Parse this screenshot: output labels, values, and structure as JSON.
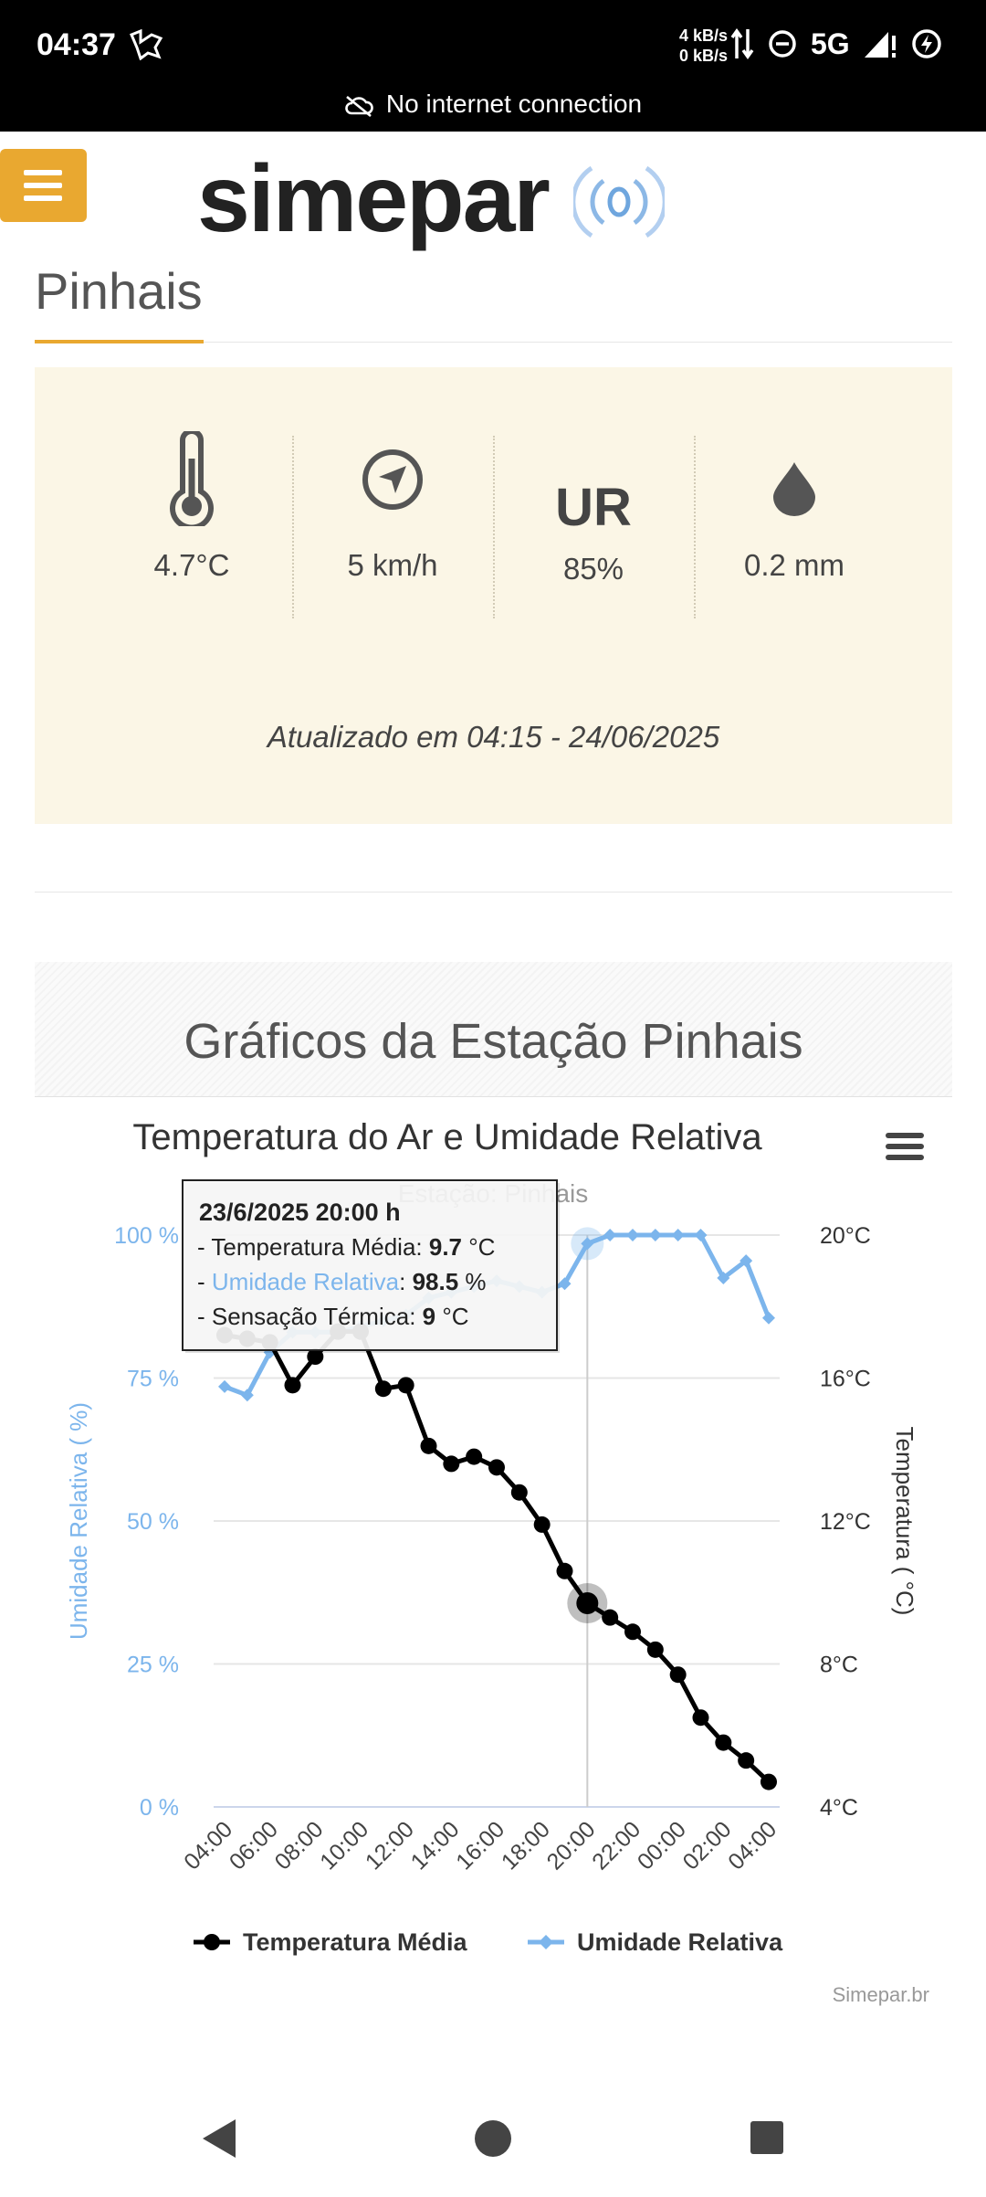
{
  "status_bar": {
    "time": "04:37",
    "speed_up": "4 kB/s",
    "speed_down": "0 kB/s",
    "network": "5G",
    "offline_text": "No internet connection"
  },
  "header": {
    "menu_icon": "hamburger-icon",
    "logo_text": "simepar"
  },
  "station": {
    "name": "Pinhais"
  },
  "current": {
    "temperature": "4.7°C",
    "wind": "5 km/h",
    "humidity_label": "UR",
    "humidity": "85%",
    "rain": "0.2 mm",
    "updated": "Atualizado em 04:15 - 24/06/2025",
    "icons": [
      "thermometer-icon",
      "compass-icon",
      "ur-icon",
      "raindrop-icon"
    ]
  },
  "graphs": {
    "section_title": "Gráficos da Estação Pinhais"
  },
  "chart_data": {
    "type": "line",
    "title": "Temperatura do Ar e Umidade Relativa",
    "subtitle": "Estação: Pinhais",
    "credits": "Simepar.br",
    "x": [
      "04:00",
      "05:00",
      "06:00",
      "07:00",
      "08:00",
      "09:00",
      "10:00",
      "11:00",
      "12:00",
      "13:00",
      "14:00",
      "15:00",
      "16:00",
      "17:00",
      "18:00",
      "19:00",
      "20:00",
      "21:00",
      "22:00",
      "23:00",
      "00:00",
      "01:00",
      "02:00",
      "03:00",
      "04:00"
    ],
    "x_tick_labels": [
      "04:00",
      "06:00",
      "08:00",
      "10:00",
      "12:00",
      "14:00",
      "16:00",
      "18:00",
      "20:00",
      "22:00",
      "00:00",
      "02:00",
      "04:00"
    ],
    "y_left": {
      "label": "Umidade Relativa ( %)",
      "range": [
        0,
        100
      ],
      "ticks": [
        "0 %",
        "25 %",
        "50 %",
        "75 %",
        "100 %"
      ]
    },
    "y_right": {
      "label": "Temperatura ( °C)",
      "range": [
        4,
        20
      ],
      "ticks": [
        "4°C",
        "8°C",
        "12°C",
        "16°C",
        "20°C"
      ]
    },
    "series": [
      {
        "name": "Temperatura Média",
        "axis": "right",
        "color": "#000000",
        "values": [
          17.2,
          17.1,
          17.0,
          15.8,
          16.6,
          17.3,
          17.3,
          15.7,
          15.8,
          14.1,
          13.6,
          13.8,
          13.5,
          12.8,
          11.9,
          10.6,
          9.7,
          9.3,
          8.9,
          8.4,
          7.7,
          6.5,
          5.8,
          5.3,
          4.7
        ]
      },
      {
        "name": "Umidade Relativa",
        "axis": "left",
        "color": "#7cb5ec",
        "values": [
          73.5,
          72.0,
          79.5,
          83.0,
          83.0,
          83.0,
          84.0,
          85.0,
          86.0,
          89.0,
          90.0,
          91.0,
          92.0,
          91.0,
          90.0,
          91.5,
          98.5,
          100.0,
          100.0,
          100.0,
          100.0,
          100.0,
          92.5,
          95.5,
          85.5
        ]
      }
    ],
    "tooltip": {
      "header": "23/6/2025 20:00 h",
      "rows": [
        {
          "label": "Temperatura Média",
          "value": "9.7",
          "unit": "°C",
          "color": "#222222"
        },
        {
          "label": "Umidade Relativa",
          "value": "98.5",
          "unit": "%",
          "color": "#7cb5ec"
        },
        {
          "label": "Sensação Térmica",
          "value": "9",
          "unit": "°C",
          "color": "#222222"
        }
      ],
      "hover_index": 16
    },
    "legend": {
      "position": "bottom-center"
    },
    "grid": true,
    "colors": {
      "humidity_axis": "#7cb5ec",
      "grid": "#e6e6e6"
    }
  }
}
